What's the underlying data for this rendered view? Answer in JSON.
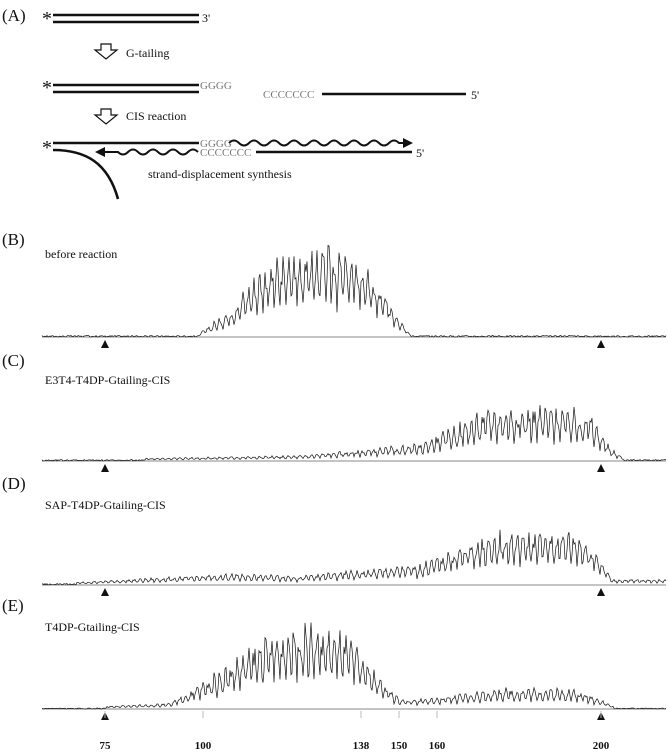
{
  "schematic": {
    "panel_label": "(A)",
    "star": "*",
    "end_3p": "3'",
    "step1_label": "G-tailing",
    "g_tail": "GGGG",
    "c_primer": "CCCCCCC",
    "end_5p_top": "5'",
    "step2_label": "CIS reaction",
    "g_tail_2": "GGGG",
    "c_primer_2": "CCCCCCC",
    "end_5p_bottom": "5'",
    "displacement_label": "strand-displacement synthesis"
  },
  "panels": [
    {
      "label": "(B)",
      "title": "before reaction"
    },
    {
      "label": "(C)",
      "title": "E3T4-T4DP-Gtailing-CIS"
    },
    {
      "label": "(D)",
      "title": "SAP-T4DP-Gtailing-CIS"
    },
    {
      "label": "(E)",
      "title": "T4DP-Gtailing-CIS"
    }
  ],
  "marker_sizes": [
    {
      "text": "75",
      "size": 75
    },
    {
      "text": "200",
      "size": 200
    }
  ],
  "axis_ticks": [
    {
      "text": "75",
      "size": 75
    },
    {
      "text": "100",
      "size": 100
    },
    {
      "text": "138",
      "size": 138
    },
    {
      "text": "150",
      "size": 150
    },
    {
      "text": "160",
      "size": 160
    },
    {
      "text": "200",
      "size": 200
    }
  ]
}
